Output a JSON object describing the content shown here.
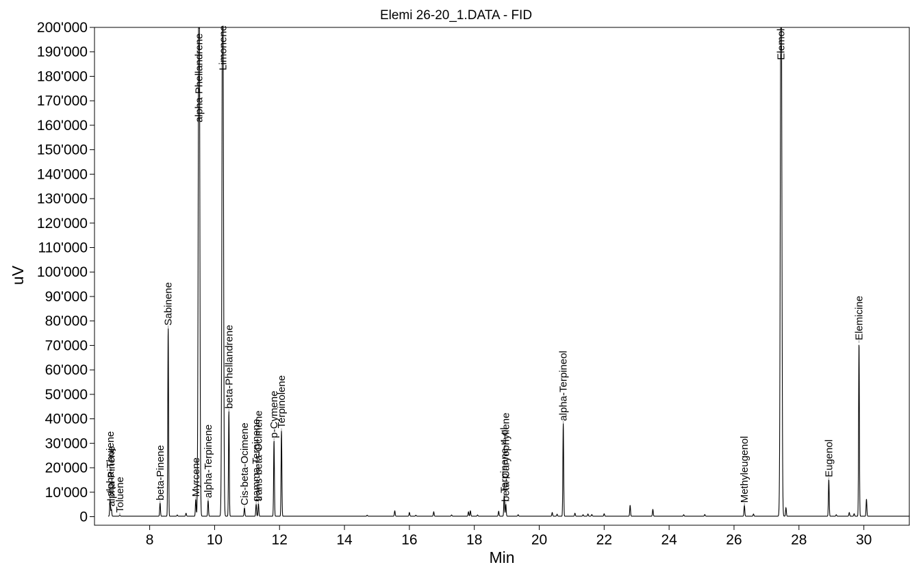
{
  "chart_data": {
    "type": "line",
    "title": "Elemi 26-20_1.DATA - FID",
    "xlabel": "Min",
    "ylabel": "uV",
    "xlim": [
      6.3,
      31.4
    ],
    "ylim": [
      -3500,
      200000
    ],
    "x_ticks": [
      8,
      10,
      12,
      14,
      16,
      18,
      20,
      22,
      24,
      26,
      28,
      30
    ],
    "x_tick_labels": [
      "8",
      "10",
      "12",
      "14",
      "16",
      "18",
      "20",
      "22",
      "24",
      "26",
      "28",
      "30"
    ],
    "y_ticks": [
      0,
      10000,
      20000,
      30000,
      40000,
      50000,
      60000,
      70000,
      80000,
      90000,
      100000,
      110000,
      120000,
      130000,
      140000,
      150000,
      160000,
      170000,
      180000,
      190000,
      200000
    ],
    "y_tick_labels": [
      "0",
      "10'000",
      "20'000",
      "30'000",
      "40'000",
      "50'000",
      "60'000",
      "70'000",
      "80'000",
      "90'000",
      "100'000",
      "110'000",
      "120'000",
      "130'000",
      "140'000",
      "150'000",
      "160'000",
      "170'000",
      "180'000",
      "190'000",
      "200'000"
    ],
    "grid": false,
    "baseline": 200,
    "series": [
      {
        "line_color": "#000000",
        "peaks": [
          {
            "x": 6.78,
            "y": 7000,
            "label": "alpha-Thujene"
          },
          {
            "x": 6.82,
            "y": 3000,
            "label": "alpha-Pinene"
          },
          {
            "x": 7.08,
            "y": 500,
            "label": "Toluene"
          },
          {
            "x": 8.32,
            "y": 5500,
            "label": "beta-Pinene"
          },
          {
            "x": 8.57,
            "y": 77000,
            "label": "Sabinene"
          },
          {
            "x": 8.85,
            "y": 500
          },
          {
            "x": 9.12,
            "y": 1200
          },
          {
            "x": 9.42,
            "y": 7000,
            "label": "Myrcene"
          },
          {
            "x": 9.52,
            "y": 250000,
            "label": "alpha-Phellandrene"
          },
          {
            "x": 9.8,
            "y": 6500,
            "label": "alpha-Terpinene"
          },
          {
            "x": 10.25,
            "y": 250000,
            "label": "Limonene"
          },
          {
            "x": 10.44,
            "y": 43000,
            "label": "beta-Phellandrene"
          },
          {
            "x": 10.92,
            "y": 3500,
            "label": "Cis-beta-Ocimene"
          },
          {
            "x": 11.28,
            "y": 5000,
            "label": "gamma-Terpinene"
          },
          {
            "x": 11.35,
            "y": 5200,
            "label": "trans-beta-Ocimene"
          },
          {
            "x": 11.83,
            "y": 31000,
            "label": "p-Cymene"
          },
          {
            "x": 12.06,
            "y": 35000,
            "label": "Terpinolene"
          },
          {
            "x": 14.7,
            "y": 400
          },
          {
            "x": 15.55,
            "y": 2200
          },
          {
            "x": 16.0,
            "y": 1500
          },
          {
            "x": 16.2,
            "y": 400
          },
          {
            "x": 16.75,
            "y": 1800
          },
          {
            "x": 17.3,
            "y": 500
          },
          {
            "x": 17.82,
            "y": 1800
          },
          {
            "x": 17.88,
            "y": 2200
          },
          {
            "x": 18.1,
            "y": 500
          },
          {
            "x": 18.75,
            "y": 2000
          },
          {
            "x": 18.92,
            "y": 8500,
            "label": "Terpinene-4-ol"
          },
          {
            "x": 18.97,
            "y": 5000,
            "label": "beta-Caryophyllene"
          },
          {
            "x": 19.35,
            "y": 600
          },
          {
            "x": 20.4,
            "y": 1500
          },
          {
            "x": 20.55,
            "y": 800
          },
          {
            "x": 20.74,
            "y": 38000,
            "label": "alpha-Terpineol"
          },
          {
            "x": 21.1,
            "y": 1200
          },
          {
            "x": 21.35,
            "y": 600
          },
          {
            "x": 21.5,
            "y": 900
          },
          {
            "x": 21.62,
            "y": 700
          },
          {
            "x": 22.0,
            "y": 1000
          },
          {
            "x": 22.8,
            "y": 4500
          },
          {
            "x": 23.5,
            "y": 2800
          },
          {
            "x": 24.45,
            "y": 600
          },
          {
            "x": 25.1,
            "y": 700
          },
          {
            "x": 26.32,
            "y": 4500,
            "label": "Methyleugenol"
          },
          {
            "x": 26.6,
            "y": 900
          },
          {
            "x": 27.45,
            "y": 250000,
            "label": "Elemol"
          },
          {
            "x": 27.6,
            "y": 3500
          },
          {
            "x": 28.92,
            "y": 15000,
            "label": "Eugenol"
          },
          {
            "x": 29.15,
            "y": 600
          },
          {
            "x": 29.55,
            "y": 1500
          },
          {
            "x": 29.7,
            "y": 1000
          },
          {
            "x": 29.85,
            "y": 71000,
            "label": "Elemicine"
          },
          {
            "x": 30.08,
            "y": 7000
          }
        ]
      }
    ]
  }
}
